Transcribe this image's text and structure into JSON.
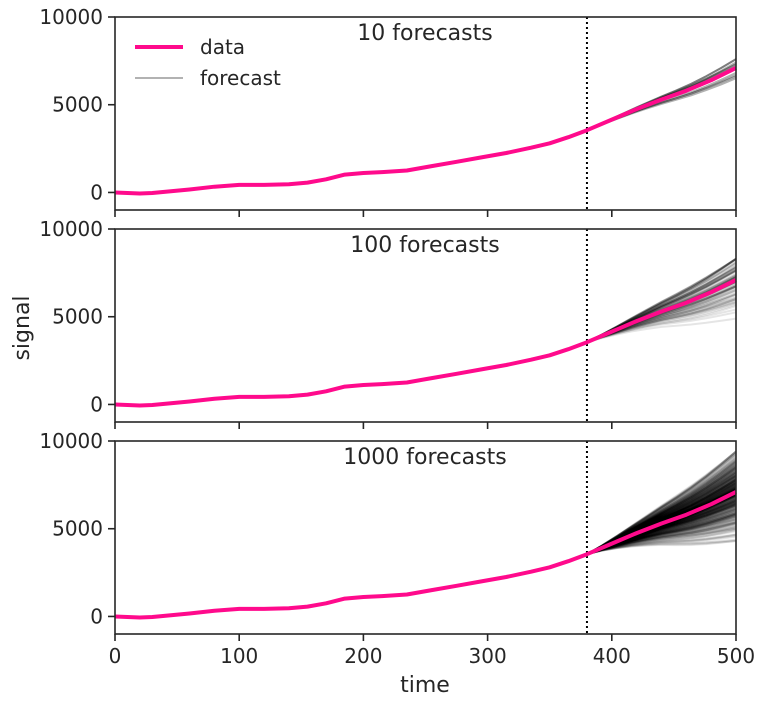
{
  "figure": {
    "xlabel": "time",
    "ylabel": "signal"
  },
  "legend": {
    "location": "upper-left",
    "data_label": "data",
    "forecast_label": "forecast"
  },
  "colors": {
    "data": "#ff0a8c",
    "forecast": "#000000",
    "axes": "#262626",
    "cutoff": "#000000"
  },
  "chart_data": [
    {
      "type": "line",
      "title": "10 forecasts",
      "n_forecasts": 10,
      "xlim": [
        0,
        500
      ],
      "ylim": [
        -1000,
        10000
      ],
      "xticks": [
        0,
        100,
        200,
        300,
        400,
        500
      ],
      "yticks": [
        0,
        5000,
        10000
      ],
      "show_xtick_labels": false,
      "forecast_start": 380,
      "forecast_alpha": 0.3,
      "forecast_end_range": [
        5700,
        7600
      ],
      "legend": true
    },
    {
      "type": "line",
      "title": "100 forecasts",
      "n_forecasts": 100,
      "xlim": [
        0,
        500
      ],
      "ylim": [
        -1000,
        10000
      ],
      "xticks": [
        0,
        100,
        200,
        300,
        400,
        500
      ],
      "yticks": [
        0,
        5000,
        10000
      ],
      "show_xtick_labels": false,
      "forecast_start": 380,
      "forecast_alpha": 0.1,
      "forecast_end_range": [
        4400,
        8300
      ],
      "legend": false
    },
    {
      "type": "line",
      "title": "1000 forecasts",
      "n_forecasts": 1000,
      "xlim": [
        0,
        500
      ],
      "ylim": [
        -1000,
        10000
      ],
      "xticks": [
        0,
        100,
        200,
        300,
        400,
        500
      ],
      "yticks": [
        0,
        5000,
        10000
      ],
      "show_xtick_labels": true,
      "forecast_start": 380,
      "forecast_alpha": 0.04,
      "forecast_end_range": [
        4300,
        9400
      ],
      "legend": false
    }
  ],
  "series": {
    "data": {
      "name": "data",
      "x": [
        0,
        10,
        20,
        30,
        45,
        60,
        80,
        100,
        120,
        140,
        155,
        170,
        185,
        200,
        215,
        235,
        255,
        275,
        295,
        315,
        335,
        350,
        365,
        380,
        400,
        420,
        440,
        460,
        480,
        500
      ],
      "y": [
        0,
        -30,
        -60,
        -30,
        70,
        170,
        330,
        430,
        430,
        470,
        560,
        750,
        1020,
        1110,
        1160,
        1250,
        1500,
        1750,
        2000,
        2250,
        2550,
        2800,
        3150,
        3550,
        4150,
        4750,
        5300,
        5800,
        6400,
        7100
      ]
    }
  }
}
